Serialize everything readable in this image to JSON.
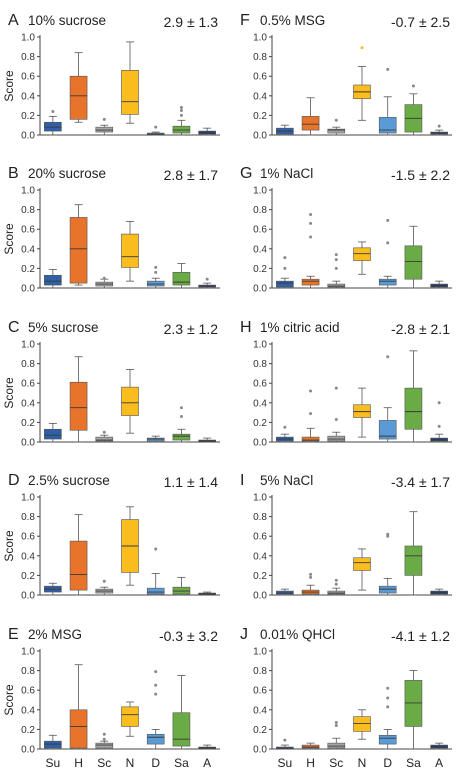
{
  "figure": {
    "ylabel": "Score",
    "categories": [
      "Su",
      "H",
      "Sc",
      "N",
      "D",
      "Sa",
      "A"
    ],
    "yticks": [
      "0.0",
      "0.2",
      "0.4",
      "0.6",
      "0.8",
      "1.0"
    ],
    "colors": {
      "Su": "#2e5fa8",
      "H": "#e8732a",
      "Sc": "#a5a5a5",
      "N": "#fbbd1d",
      "D": "#5b9bd5",
      "Sa": "#6aab46",
      "A": "#1f3f7a",
      "outline": "#555555"
    }
  },
  "chart_data": [
    {
      "type": "box",
      "letter": "A",
      "title": "10% sucrose",
      "stat": "2.9 ± 1.3",
      "ylim": [
        0,
        1
      ],
      "categories": [
        "Su",
        "H",
        "Sc",
        "N",
        "D",
        "Sa",
        "A"
      ],
      "boxes": [
        {
          "min": 0.0,
          "q1": 0.04,
          "median": 0.08,
          "q3": 0.13,
          "max": 0.19,
          "outliers": [
            0.24
          ]
        },
        {
          "min": 0.13,
          "q1": 0.16,
          "median": 0.4,
          "q3": 0.6,
          "max": 0.84,
          "outliers": []
        },
        {
          "min": 0.0,
          "q1": 0.03,
          "median": 0.05,
          "q3": 0.08,
          "max": 0.1,
          "outliers": [
            0.16
          ]
        },
        {
          "min": 0.12,
          "q1": 0.21,
          "median": 0.34,
          "q3": 0.66,
          "max": 0.95,
          "outliers": []
        },
        {
          "min": 0.0,
          "q1": 0.01,
          "median": 0.01,
          "q3": 0.02,
          "max": 0.03,
          "outliers": [
            0.08
          ]
        },
        {
          "min": 0.0,
          "q1": 0.02,
          "median": 0.05,
          "q3": 0.09,
          "max": 0.15,
          "outliers": [
            0.2,
            0.25,
            0.28
          ]
        },
        {
          "min": 0.0,
          "q1": 0.01,
          "median": 0.02,
          "q3": 0.04,
          "max": 0.07,
          "outliers": []
        }
      ]
    },
    {
      "type": "box",
      "letter": "B",
      "title": "20% sucrose",
      "stat": "2.8 ± 1.7",
      "ylim": [
        0,
        1
      ],
      "categories": [
        "Su",
        "H",
        "Sc",
        "N",
        "D",
        "Sa",
        "A"
      ],
      "boxes": [
        {
          "min": 0.0,
          "q1": 0.03,
          "median": 0.07,
          "q3": 0.13,
          "max": 0.19,
          "outliers": []
        },
        {
          "min": 0.03,
          "q1": 0.05,
          "median": 0.4,
          "q3": 0.72,
          "max": 0.85,
          "outliers": []
        },
        {
          "min": 0.0,
          "q1": 0.02,
          "median": 0.04,
          "q3": 0.06,
          "max": 0.09,
          "outliers": [
            0.1
          ]
        },
        {
          "min": 0.07,
          "q1": 0.21,
          "median": 0.32,
          "q3": 0.55,
          "max": 0.68,
          "outliers": []
        },
        {
          "min": 0.0,
          "q1": 0.02,
          "median": 0.04,
          "q3": 0.07,
          "max": 0.1,
          "outliers": [
            0.16,
            0.21
          ]
        },
        {
          "min": 0.0,
          "q1": 0.03,
          "median": 0.06,
          "q3": 0.16,
          "max": 0.25,
          "outliers": []
        },
        {
          "min": 0.0,
          "q1": 0.01,
          "median": 0.02,
          "q3": 0.03,
          "max": 0.05,
          "outliers": [
            0.09
          ]
        }
      ]
    },
    {
      "type": "box",
      "letter": "C",
      "title": "5% sucrose",
      "stat": "2.3 ± 1.2",
      "ylim": [
        0,
        1
      ],
      "categories": [
        "Su",
        "H",
        "Sc",
        "N",
        "D",
        "Sa",
        "A"
      ],
      "boxes": [
        {
          "min": 0.0,
          "q1": 0.03,
          "median": 0.07,
          "q3": 0.13,
          "max": 0.19,
          "outliers": []
        },
        {
          "min": 0.0,
          "q1": 0.12,
          "median": 0.35,
          "q3": 0.61,
          "max": 0.87,
          "outliers": []
        },
        {
          "min": 0.0,
          "q1": 0.01,
          "median": 0.02,
          "q3": 0.05,
          "max": 0.07,
          "outliers": [
            0.1
          ]
        },
        {
          "min": 0.09,
          "q1": 0.27,
          "median": 0.4,
          "q3": 0.56,
          "max": 0.74,
          "outliers": []
        },
        {
          "min": 0.0,
          "q1": 0.01,
          "median": 0.03,
          "q3": 0.04,
          "max": 0.06,
          "outliers": []
        },
        {
          "min": 0.0,
          "q1": 0.02,
          "median": 0.06,
          "q3": 0.08,
          "max": 0.13,
          "outliers": [
            0.26,
            0.35
          ]
        },
        {
          "min": 0.0,
          "q1": 0.01,
          "median": 0.01,
          "q3": 0.02,
          "max": 0.04,
          "outliers": []
        }
      ]
    },
    {
      "type": "box",
      "letter": "D",
      "title": "2.5% sucrose",
      "stat": "1.1 ± 1.4",
      "ylim": [
        0,
        1
      ],
      "categories": [
        "Su",
        "H",
        "Sc",
        "N",
        "D",
        "Sa",
        "A"
      ],
      "boxes": [
        {
          "min": 0.0,
          "q1": 0.03,
          "median": 0.06,
          "q3": 0.09,
          "max": 0.12,
          "outliers": []
        },
        {
          "min": 0.0,
          "q1": 0.05,
          "median": 0.21,
          "q3": 0.55,
          "max": 0.82,
          "outliers": []
        },
        {
          "min": 0.0,
          "q1": 0.02,
          "median": 0.04,
          "q3": 0.06,
          "max": 0.08,
          "outliers": [
            0.14
          ]
        },
        {
          "min": 0.1,
          "q1": 0.23,
          "median": 0.5,
          "q3": 0.77,
          "max": 0.9,
          "outliers": []
        },
        {
          "min": 0.0,
          "q1": 0.01,
          "median": 0.03,
          "q3": 0.07,
          "max": 0.22,
          "outliers": [
            0.47
          ]
        },
        {
          "min": 0.0,
          "q1": 0.01,
          "median": 0.04,
          "q3": 0.08,
          "max": 0.18,
          "outliers": []
        },
        {
          "min": 0.0,
          "q1": 0.01,
          "median": 0.01,
          "q3": 0.02,
          "max": 0.03,
          "outliers": []
        }
      ]
    },
    {
      "type": "box",
      "letter": "E",
      "title": "2% MSG",
      "stat": "-0.3 ± 3.2",
      "ylim": [
        0,
        1
      ],
      "categories": [
        "Su",
        "H",
        "Sc",
        "N",
        "D",
        "Sa",
        "A"
      ],
      "boxes": [
        {
          "min": 0.0,
          "q1": 0.01,
          "median": 0.05,
          "q3": 0.08,
          "max": 0.14,
          "outliers": []
        },
        {
          "min": 0.0,
          "q1": 0.01,
          "median": 0.23,
          "q3": 0.4,
          "max": 0.86,
          "outliers": []
        },
        {
          "min": 0.0,
          "q1": 0.01,
          "median": 0.04,
          "q3": 0.06,
          "max": 0.08,
          "outliers": [
            0.1,
            0.15
          ]
        },
        {
          "min": 0.13,
          "q1": 0.23,
          "median": 0.35,
          "q3": 0.43,
          "max": 0.48,
          "outliers": []
        },
        {
          "min": 0.0,
          "q1": 0.05,
          "median": 0.12,
          "q3": 0.15,
          "max": 0.2,
          "outliers": [
            0.56,
            0.65,
            0.79
          ]
        },
        {
          "min": 0.0,
          "q1": 0.03,
          "median": 0.1,
          "q3": 0.37,
          "max": 0.75,
          "outliers": []
        },
        {
          "min": 0.0,
          "q1": 0.01,
          "median": 0.01,
          "q3": 0.02,
          "max": 0.04,
          "outliers": []
        }
      ]
    },
    {
      "type": "box",
      "letter": "F",
      "title": "0.5% MSG",
      "stat": "-0.7 ± 2.5",
      "ylim": [
        0,
        1
      ],
      "categories": [
        "Su",
        "H",
        "Sc",
        "N",
        "D",
        "Sa",
        "A"
      ],
      "boxes": [
        {
          "min": 0.0,
          "q1": 0.01,
          "median": 0.04,
          "q3": 0.07,
          "max": 0.1,
          "outliers": []
        },
        {
          "min": 0.0,
          "q1": 0.05,
          "median": 0.11,
          "q3": 0.19,
          "max": 0.38,
          "outliers": []
        },
        {
          "min": 0.0,
          "q1": 0.02,
          "median": 0.05,
          "q3": 0.06,
          "max": 0.08,
          "outliers": [
            0.15
          ]
        },
        {
          "min": 0.15,
          "q1": 0.37,
          "median": 0.44,
          "q3": 0.51,
          "max": 0.7,
          "outliers": [
            0.89
          ]
        },
        {
          "min": 0.0,
          "q1": 0.02,
          "median": 0.05,
          "q3": 0.18,
          "max": 0.39,
          "outliers": [
            0.67
          ]
        },
        {
          "min": 0.0,
          "q1": 0.03,
          "median": 0.17,
          "q3": 0.31,
          "max": 0.42,
          "outliers": [
            0.5
          ]
        },
        {
          "min": 0.0,
          "q1": 0.01,
          "median": 0.02,
          "q3": 0.03,
          "max": 0.05,
          "outliers": [
            0.09
          ]
        }
      ]
    },
    {
      "type": "box",
      "letter": "G",
      "title": "1% NaCl",
      "stat": "-1.5 ± 2.2",
      "ylim": [
        0,
        1
      ],
      "categories": [
        "Su",
        "H",
        "Sc",
        "N",
        "D",
        "Sa",
        "A"
      ],
      "boxes": [
        {
          "min": 0.0,
          "q1": 0.01,
          "median": 0.05,
          "q3": 0.07,
          "max": 0.1,
          "outliers": [
            0.2,
            0.31
          ]
        },
        {
          "min": 0.0,
          "q1": 0.03,
          "median": 0.07,
          "q3": 0.09,
          "max": 0.12,
          "outliers": [
            0.52,
            0.66,
            0.75
          ]
        },
        {
          "min": 0.0,
          "q1": 0.01,
          "median": 0.02,
          "q3": 0.04,
          "max": 0.07,
          "outliers": [
            0.2,
            0.29,
            0.34
          ]
        },
        {
          "min": 0.14,
          "q1": 0.28,
          "median": 0.35,
          "q3": 0.41,
          "max": 0.47,
          "outliers": []
        },
        {
          "min": 0.0,
          "q1": 0.03,
          "median": 0.07,
          "q3": 0.09,
          "max": 0.12,
          "outliers": [
            0.46,
            0.69
          ]
        },
        {
          "min": 0.0,
          "q1": 0.09,
          "median": 0.27,
          "q3": 0.43,
          "max": 0.63,
          "outliers": []
        },
        {
          "min": 0.0,
          "q1": 0.01,
          "median": 0.02,
          "q3": 0.04,
          "max": 0.07,
          "outliers": []
        }
      ]
    },
    {
      "type": "box",
      "letter": "H",
      "title": "1% citric acid",
      "stat": "-2.8 ± 2.1",
      "ylim": [
        0,
        1
      ],
      "categories": [
        "Su",
        "H",
        "Sc",
        "N",
        "D",
        "Sa",
        "A"
      ],
      "boxes": [
        {
          "min": 0.0,
          "q1": 0.01,
          "median": 0.03,
          "q3": 0.05,
          "max": 0.08,
          "outliers": [
            0.15
          ]
        },
        {
          "min": 0.0,
          "q1": 0.01,
          "median": 0.02,
          "q3": 0.05,
          "max": 0.14,
          "outliers": [
            0.29,
            0.52
          ]
        },
        {
          "min": 0.0,
          "q1": 0.01,
          "median": 0.03,
          "q3": 0.06,
          "max": 0.1,
          "outliers": [
            0.23,
            0.55
          ]
        },
        {
          "min": 0.05,
          "q1": 0.25,
          "median": 0.31,
          "q3": 0.38,
          "max": 0.55,
          "outliers": []
        },
        {
          "min": 0.0,
          "q1": 0.03,
          "median": 0.06,
          "q3": 0.22,
          "max": 0.35,
          "outliers": [
            0.87
          ]
        },
        {
          "min": 0.0,
          "q1": 0.13,
          "median": 0.31,
          "q3": 0.55,
          "max": 0.93,
          "outliers": []
        },
        {
          "min": 0.0,
          "q1": 0.01,
          "median": 0.02,
          "q3": 0.04,
          "max": 0.08,
          "outliers": [
            0.16,
            0.4
          ]
        }
      ]
    },
    {
      "type": "box",
      "letter": "I",
      "title": "5% NaCl",
      "stat": "-3.4 ± 1.7",
      "ylim": [
        0,
        1
      ],
      "categories": [
        "Su",
        "H",
        "Sc",
        "N",
        "D",
        "Sa",
        "A"
      ],
      "boxes": [
        {
          "min": 0.0,
          "q1": 0.01,
          "median": 0.02,
          "q3": 0.04,
          "max": 0.06,
          "outliers": []
        },
        {
          "min": 0.0,
          "q1": 0.01,
          "median": 0.03,
          "q3": 0.05,
          "max": 0.1,
          "outliers": [
            0.18,
            0.21
          ]
        },
        {
          "min": 0.0,
          "q1": 0.01,
          "median": 0.02,
          "q3": 0.04,
          "max": 0.07,
          "outliers": [
            0.11,
            0.15
          ]
        },
        {
          "min": 0.05,
          "q1": 0.25,
          "median": 0.33,
          "q3": 0.38,
          "max": 0.47,
          "outliers": []
        },
        {
          "min": 0.0,
          "q1": 0.02,
          "median": 0.06,
          "q3": 0.09,
          "max": 0.17,
          "outliers": [
            0.6,
            0.62
          ]
        },
        {
          "min": 0.0,
          "q1": 0.2,
          "median": 0.4,
          "q3": 0.5,
          "max": 0.85,
          "outliers": []
        },
        {
          "min": 0.0,
          "q1": 0.01,
          "median": 0.02,
          "q3": 0.04,
          "max": 0.06,
          "outliers": []
        }
      ]
    },
    {
      "type": "box",
      "letter": "J",
      "title": "0.01% QHCl",
      "stat": "-4.1 ± 1.2",
      "ylim": [
        0,
        1
      ],
      "categories": [
        "Su",
        "H",
        "Sc",
        "N",
        "D",
        "Sa",
        "A"
      ],
      "boxes": [
        {
          "min": 0.0,
          "q1": 0.01,
          "median": 0.01,
          "q3": 0.02,
          "max": 0.04,
          "outliers": [
            0.09
          ]
        },
        {
          "min": 0.0,
          "q1": 0.01,
          "median": 0.02,
          "q3": 0.04,
          "max": 0.06,
          "outliers": []
        },
        {
          "min": 0.0,
          "q1": 0.01,
          "median": 0.03,
          "q3": 0.06,
          "max": 0.11,
          "outliers": [
            0.24,
            0.27
          ]
        },
        {
          "min": 0.1,
          "q1": 0.18,
          "median": 0.26,
          "q3": 0.33,
          "max": 0.4,
          "outliers": []
        },
        {
          "min": 0.0,
          "q1": 0.05,
          "median": 0.11,
          "q3": 0.14,
          "max": 0.2,
          "outliers": [
            0.43,
            0.52,
            0.62
          ]
        },
        {
          "min": 0.0,
          "q1": 0.23,
          "median": 0.47,
          "q3": 0.7,
          "max": 0.8,
          "outliers": []
        },
        {
          "min": 0.0,
          "q1": 0.01,
          "median": 0.02,
          "q3": 0.04,
          "max": 0.06,
          "outliers": []
        }
      ]
    }
  ]
}
